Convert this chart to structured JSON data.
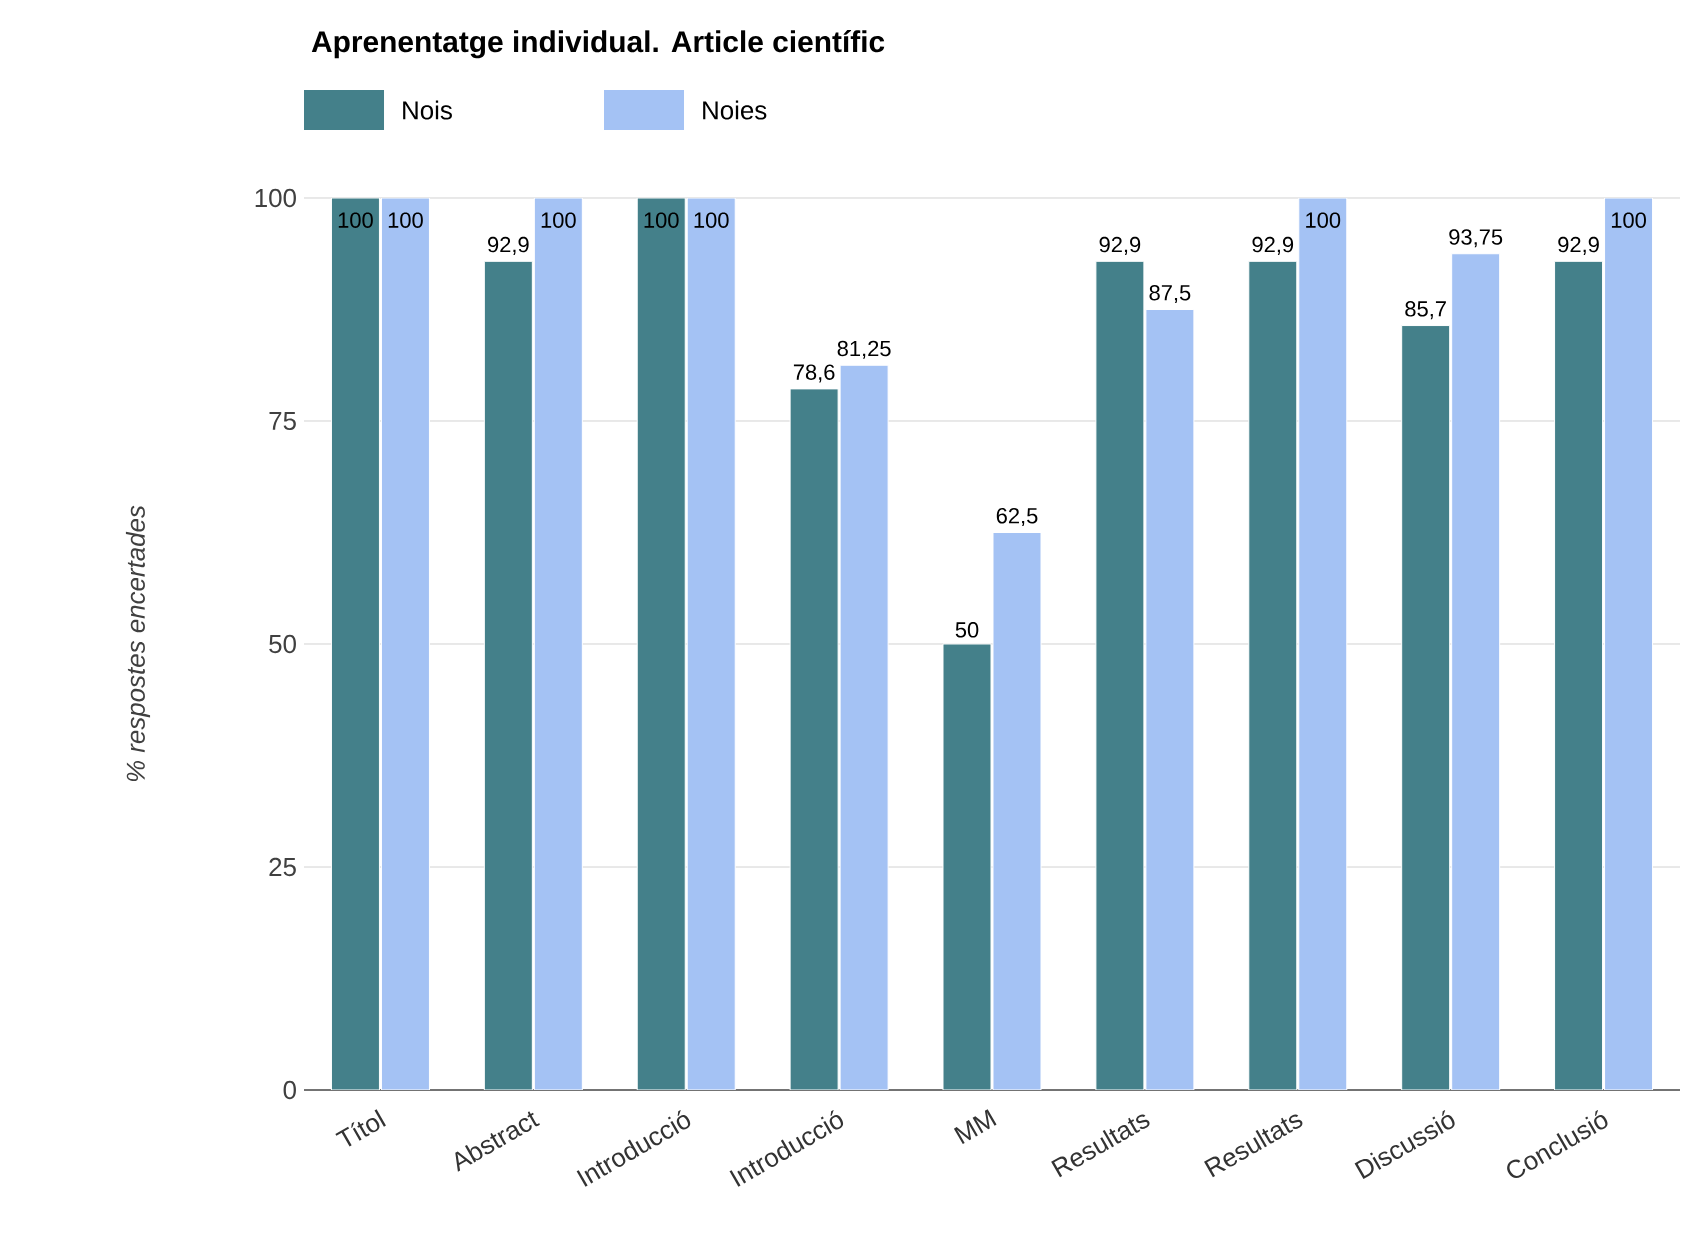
{
  "chart_data": {
    "type": "bar",
    "title": "Aprenentatge individual. Article científic",
    "ylabel": "% respostes encertades",
    "categories": [
      "Títol",
      "Abstract",
      "Introducció",
      "Introducció",
      "MM",
      "Resultats",
      "Resultats",
      "Discussió",
      "Conclusió"
    ],
    "series": [
      {
        "name": "Nois",
        "color": "#44808a",
        "values": [
          100,
          92.9,
          100,
          78.6,
          50,
          92.9,
          92.9,
          85.7,
          92.9
        ],
        "value_labels": [
          "100",
          "92,9",
          "100",
          "78,6",
          "50",
          "92,9",
          "92,9",
          "85,7",
          "92,9"
        ]
      },
      {
        "name": "Noies",
        "color": "#a4c2f4",
        "values": [
          100,
          100,
          100,
          81.25,
          62.5,
          87.5,
          100,
          93.75,
          100
        ],
        "value_labels": [
          "100",
          "100",
          "100",
          "81,25",
          "62,5",
          "87,5",
          "100",
          "93,75",
          "100"
        ]
      }
    ],
    "ylim": [
      0,
      100
    ],
    "yticks": [
      0,
      25,
      50,
      75,
      100
    ],
    "grid": "y",
    "legend": "top left"
  }
}
